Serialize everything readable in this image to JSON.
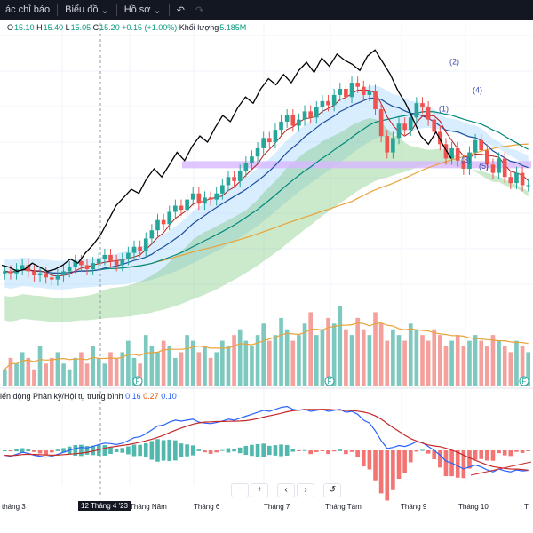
{
  "toolbar": {
    "indicators_label": "ác chỉ báo",
    "chart_label": "Biểu đồ",
    "profile_label": "Hồ sơ",
    "undo_icon": "undo-icon",
    "redo_icon": "redo-icon"
  },
  "legend": {
    "open_label": "O",
    "open": "15.10",
    "high_label": "H",
    "high": "15.40",
    "low_label": "L",
    "low": "15.05",
    "close_label": "C",
    "close": "15.20",
    "change": "+0.15 (+1.00%)",
    "volume_label": "Khối lượng",
    "volume": "5.185M"
  },
  "macd_legend": {
    "name": "iến động Phân kỳ/Hội tụ trung bình",
    "v1": "0.16",
    "v2": "0.27",
    "v3": "0.10"
  },
  "xaxis": {
    "labels": [
      "tháng 3",
      "Tháng Năm",
      "Tháng 6",
      "Tháng 7",
      "Tháng Tám",
      "Tháng 9",
      "Tháng 10",
      "T"
    ],
    "cursor_label": "12 Tháng 4 '23"
  },
  "controls": {
    "zoom_out": "−",
    "zoom_in": "+",
    "prev": "‹",
    "next": "›",
    "reset": "↺"
  },
  "annotations": {
    "wave_labels": [
      "(1)",
      "(2)",
      "(3)",
      "(4)",
      "(5)"
    ],
    "event_marker": "F"
  },
  "colors": {
    "up": "#26a69a",
    "down": "#ef5350",
    "cloud_green": "#6bbf6b",
    "cloud_blue": "#90caf9",
    "ma_orange": "#e8a33a",
    "ma_teal": "#00897b",
    "ma_blue": "#1e4fa0",
    "ma_red": "#b71c1c",
    "macd_blue": "#2962ff",
    "macd_red": "#c62828",
    "support_band": "#d7b8ff"
  },
  "chart_data": {
    "type": "candlestick",
    "price_series": [
      11.0,
      10.9,
      11.1,
      11.3,
      11.0,
      10.8,
      10.9,
      10.7,
      10.6,
      10.8,
      11.0,
      11.2,
      11.5,
      11.3,
      11.1,
      11.4,
      11.6,
      11.8,
      11.5,
      11.3,
      11.6,
      11.9,
      12.2,
      12.0,
      12.6,
      13.0,
      13.5,
      13.3,
      13.9,
      14.2,
      14.0,
      14.5,
      14.8,
      14.3,
      14.6,
      14.5,
      14.8,
      15.2,
      15.6,
      15.4,
      15.9,
      16.3,
      16.6,
      17.0,
      17.5,
      17.3,
      17.9,
      18.3,
      18.6,
      18.1,
      18.4,
      18.8,
      18.5,
      19.0,
      19.3,
      19.1,
      19.6,
      19.9,
      19.5,
      20.2,
      20.0,
      19.6,
      19.8,
      18.9,
      17.6,
      16.8,
      17.5,
      18.2,
      17.9,
      18.5,
      19.2,
      19.0,
      18.4,
      17.8,
      17.2,
      16.5,
      17.0,
      16.4,
      16.0,
      16.8,
      17.4,
      16.9,
      16.2,
      15.8,
      16.5,
      15.6,
      15.3,
      15.8,
      15.2,
      15.2
    ],
    "volume_series": [
      3,
      5,
      4,
      6,
      5,
      3,
      7,
      4,
      5,
      6,
      4,
      3,
      5,
      6,
      4,
      7,
      5,
      4,
      6,
      5,
      6,
      8,
      5,
      4,
      9,
      7,
      6,
      8,
      7,
      5,
      6,
      9,
      8,
      6,
      7,
      5,
      6,
      8,
      7,
      9,
      10,
      8,
      7,
      9,
      11,
      8,
      9,
      12,
      10,
      8,
      9,
      11,
      13,
      9,
      10,
      12,
      11,
      14,
      10,
      9,
      12,
      10,
      9,
      13,
      11,
      8,
      10,
      9,
      8,
      11,
      10,
      9,
      8,
      10,
      9,
      7,
      8,
      9,
      7,
      8,
      9,
      8,
      7,
      9,
      8,
      7,
      6,
      8,
      7,
      6
    ],
    "macd_series": [
      -0.1,
      -0.12,
      -0.08,
      -0.04,
      -0.06,
      -0.1,
      -0.12,
      -0.14,
      -0.12,
      -0.08,
      -0.04,
      0.0,
      0.04,
      0.06,
      0.05,
      0.08,
      0.12,
      0.15,
      0.14,
      0.12,
      0.15,
      0.2,
      0.26,
      0.28,
      0.34,
      0.42,
      0.5,
      0.52,
      0.58,
      0.62,
      0.6,
      0.62,
      0.64,
      0.58,
      0.56,
      0.55,
      0.57,
      0.6,
      0.64,
      0.62,
      0.66,
      0.7,
      0.74,
      0.78,
      0.82,
      0.8,
      0.84,
      0.88,
      0.9,
      0.84,
      0.82,
      0.84,
      0.8,
      0.82,
      0.84,
      0.8,
      0.82,
      0.84,
      0.78,
      0.8,
      0.74,
      0.62,
      0.56,
      0.4,
      0.2,
      0.04,
      0.06,
      0.1,
      0.08,
      0.12,
      0.18,
      0.16,
      0.08,
      0.0,
      -0.1,
      -0.22,
      -0.26,
      -0.32,
      -0.38,
      -0.34,
      -0.3,
      -0.34,
      -0.4,
      -0.44,
      -0.38,
      -0.42,
      -0.44,
      -0.4,
      -0.42,
      -0.41
    ],
    "indicator_line": [
      11.3,
      11.2,
      11.0,
      11.1,
      11.4,
      11.2,
      11.0,
      11.1,
      11.3,
      11.6,
      11.4,
      11.9,
      12.3,
      12.8,
      13.5,
      14.2,
      14.6,
      15.0,
      14.8,
      15.5,
      16.0,
      15.6,
      16.2,
      16.8,
      16.4,
      17.1,
      17.6,
      17.3,
      18.0,
      18.6,
      18.3,
      19.0,
      19.5,
      19.2,
      19.9,
      20.4,
      20.1,
      20.6,
      20.2,
      20.8,
      21.2,
      20.7,
      21.4,
      21.0,
      21.6,
      21.3,
      21.1,
      20.8,
      21.5,
      21.8,
      21.2,
      20.6,
      19.8,
      19.2,
      18.4,
      17.6,
      17.2,
      17.8,
      17.1,
      16.5
    ],
    "support_level": 16.2,
    "ylim": [
      9.5,
      22.5
    ]
  }
}
